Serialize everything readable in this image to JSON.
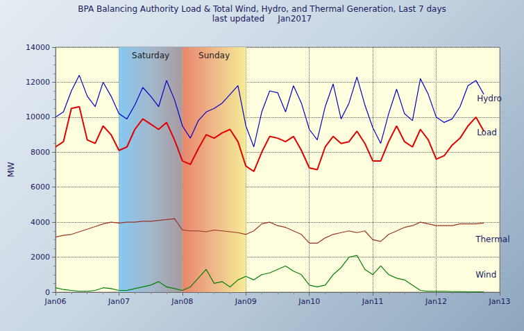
{
  "chart_data": {
    "type": "line",
    "title": "BPA Balancing Authority Load & Total Wind, Hydro, and Thermal Generation, Last 7 days",
    "subtitle": "last updated     Jan2017",
    "y_label": "MW",
    "x": [
      0,
      0.125,
      0.25,
      0.375,
      0.5,
      0.625,
      0.75,
      0.875,
      1,
      1.125,
      1.25,
      1.375,
      1.5,
      1.625,
      1.75,
      1.875,
      2,
      2.125,
      2.25,
      2.375,
      2.5,
      2.625,
      2.75,
      2.875,
      3,
      3.125,
      3.25,
      3.375,
      3.5,
      3.625,
      3.75,
      3.875,
      4,
      4.125,
      4.25,
      4.375,
      4.5,
      4.625,
      4.75,
      4.875,
      5,
      5.125,
      5.25,
      5.375,
      5.5,
      5.625,
      5.75,
      5.875,
      6,
      6.125,
      6.25,
      6.375,
      6.5,
      6.625,
      6.75
    ],
    "series": [
      {
        "name": "Hydro",
        "color": "#0000cc",
        "values": [
          10000,
          10300,
          11500,
          12400,
          11200,
          10600,
          12000,
          11200,
          10200,
          9900,
          10700,
          11700,
          11200,
          10600,
          12100,
          11000,
          9500,
          8800,
          9800,
          10300,
          10500,
          10800,
          11300,
          11800,
          9500,
          8300,
          10300,
          11500,
          11400,
          10300,
          11800,
          10800,
          9300,
          8700,
          10600,
          11900,
          9900,
          10800,
          12300,
          10700,
          9400,
          8500,
          10200,
          11600,
          10200,
          9800,
          12200,
          11300,
          10000,
          9700,
          9900,
          10600,
          11800,
          12100,
          11300
        ]
      },
      {
        "name": "Load",
        "color": "#e00000",
        "values": [
          8300,
          8600,
          10500,
          10600,
          8700,
          8500,
          9500,
          9000,
          8100,
          8300,
          9300,
          9900,
          9600,
          9300,
          9700,
          8700,
          7500,
          7300,
          8200,
          9000,
          8800,
          9100,
          9300,
          8600,
          7200,
          6900,
          8000,
          8900,
          8800,
          8600,
          8900,
          8100,
          7100,
          7000,
          8300,
          8900,
          8500,
          8600,
          9200,
          8500,
          7500,
          7500,
          8600,
          9500,
          8600,
          8300,
          9300,
          8700,
          7600,
          7800,
          8400,
          8800,
          9500,
          10000,
          9200
        ]
      },
      {
        "name": "Thermal",
        "color": "#993322",
        "values": [
          3150,
          3250,
          3300,
          3450,
          3600,
          3750,
          3900,
          4000,
          3950,
          4000,
          4000,
          4050,
          4050,
          4100,
          4150,
          4200,
          3550,
          3500,
          3500,
          3450,
          3550,
          3500,
          3450,
          3400,
          3300,
          3500,
          3900,
          4000,
          3800,
          3700,
          3500,
          3300,
          2800,
          2800,
          3100,
          3300,
          3400,
          3500,
          3400,
          3500,
          3000,
          2900,
          3300,
          3500,
          3700,
          3800,
          4000,
          3900,
          3800,
          3800,
          3800,
          3900,
          3900,
          3900,
          3950
        ]
      },
      {
        "name": "Wind",
        "color": "#008000",
        "values": [
          250,
          150,
          100,
          50,
          50,
          100,
          250,
          200,
          100,
          100,
          200,
          300,
          400,
          600,
          300,
          200,
          100,
          300,
          800,
          1300,
          500,
          600,
          300,
          700,
          900,
          700,
          1000,
          1100,
          1300,
          1500,
          1200,
          1000,
          400,
          300,
          400,
          1000,
          1400,
          2000,
          2100,
          1300,
          1000,
          1500,
          1000,
          800,
          700,
          400,
          100,
          50,
          50,
          50,
          30,
          30,
          20,
          20,
          20
        ]
      }
    ],
    "annotations": [
      {
        "text": "Saturday",
        "x": [
          1,
          2
        ]
      },
      {
        "text": "Sunday",
        "x": [
          2,
          3
        ]
      }
    ],
    "xlim": [
      0,
      7
    ],
    "xticks": [
      {
        "value": 0,
        "label": "Jan06"
      },
      {
        "value": 1,
        "label": "Jan07"
      },
      {
        "value": 2,
        "label": "Jan08"
      },
      {
        "value": 3,
        "label": "Jan09"
      },
      {
        "value": 4,
        "label": "Jan10"
      },
      {
        "value": 5,
        "label": "Jan11"
      },
      {
        "value": 6,
        "label": "Jan12"
      },
      {
        "value": 7,
        "label": "Jan13"
      }
    ],
    "ylim": [
      0,
      14000
    ],
    "yticks": [
      0,
      2000,
      4000,
      6000,
      8000,
      10000,
      12000,
      14000
    ],
    "grid": true
  }
}
